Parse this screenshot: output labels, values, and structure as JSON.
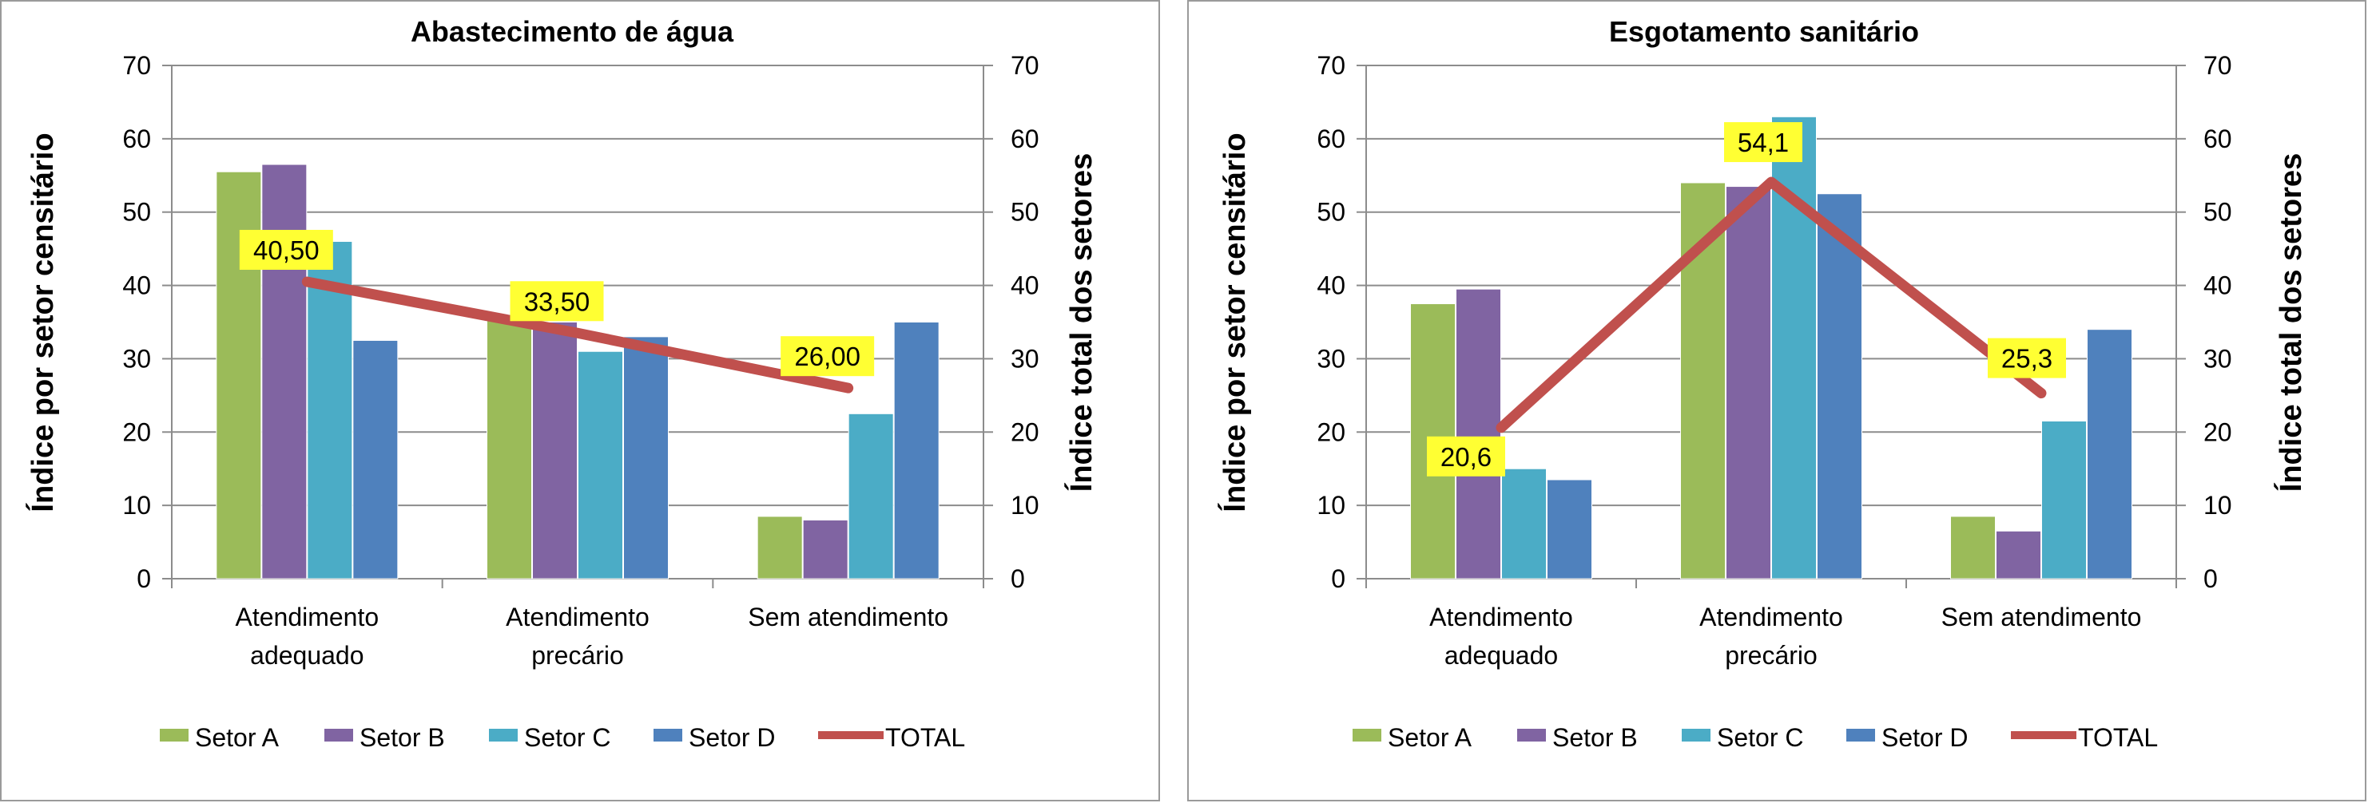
{
  "chart_data": [
    {
      "type": "bar",
      "title": "Abastecimento de água",
      "ylabel": "Índice por setor censitário",
      "y2label": "Índice total dos setores",
      "ylim": [
        0,
        70
      ],
      "y2lim": [
        0,
        70
      ],
      "yticks": [
        "0",
        "10",
        "20",
        "30",
        "40",
        "50",
        "60",
        "70"
      ],
      "categories": [
        [
          "Atendimento",
          "adequado"
        ],
        [
          "Atendimento",
          "precário"
        ],
        [
          "Sem atendimento"
        ]
      ],
      "series": [
        {
          "name": "Setor A",
          "color": "#9BBB59",
          "values": [
            55.5,
            36,
            8.5
          ]
        },
        {
          "name": "Setor B",
          "color": "#8064A2",
          "values": [
            56.5,
            35,
            8
          ]
        },
        {
          "name": "Setor C",
          "color": "#4BACC6",
          "values": [
            46,
            31,
            22.5
          ]
        },
        {
          "name": "Setor D",
          "color": "#4F81BD",
          "values": [
            32.5,
            33,
            35
          ]
        }
      ],
      "line": {
        "name": "TOTAL",
        "color": "#C0504D",
        "values": [
          40.5,
          33.5,
          26.0
        ],
        "labels": [
          "40,50",
          "33,50",
          "26,00"
        ]
      },
      "grid": true,
      "legend": "bottom"
    },
    {
      "type": "bar",
      "title": "Esgotamento sanitário",
      "ylabel": "Índice por setor censitário",
      "y2label": "Índice total dos setores",
      "ylim": [
        0,
        70
      ],
      "y2lim": [
        0,
        70
      ],
      "yticks": [
        "0",
        "10",
        "20",
        "30",
        "40",
        "50",
        "60",
        "70"
      ],
      "categories": [
        [
          "Atendimento",
          "adequado"
        ],
        [
          "Atendimento",
          "precário"
        ],
        [
          "Sem atendimento"
        ]
      ],
      "series": [
        {
          "name": "Setor A",
          "color": "#9BBB59",
          "values": [
            37.5,
            54,
            8.5
          ]
        },
        {
          "name": "Setor B",
          "color": "#8064A2",
          "values": [
            39.5,
            53.5,
            6.5
          ]
        },
        {
          "name": "Setor C",
          "color": "#4BACC6",
          "values": [
            15,
            63,
            21.5
          ]
        },
        {
          "name": "Setor D",
          "color": "#4F81BD",
          "values": [
            13.5,
            52.5,
            34
          ]
        }
      ],
      "line": {
        "name": "TOTAL",
        "color": "#C0504D",
        "values": [
          20.6,
          54.1,
          25.3
        ],
        "labels": [
          "20,6",
          "54,1",
          "25,3"
        ]
      },
      "grid": true,
      "legend": "bottom"
    }
  ]
}
